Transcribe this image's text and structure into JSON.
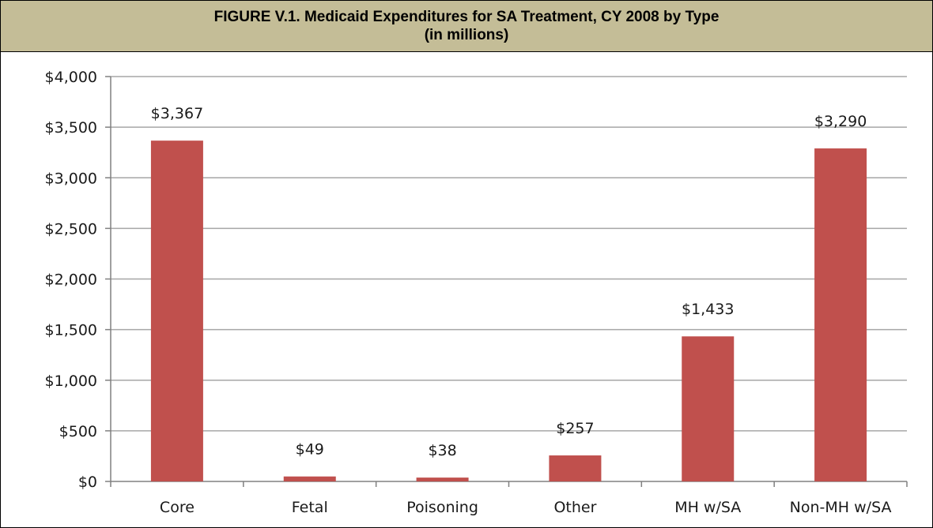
{
  "figure": {
    "title_line1": "FIGURE V.1. Medicaid Expenditures for SA Treatment, CY 2008 by Type",
    "title_line2": "(in millions)"
  },
  "colors": {
    "header_bg": "#c4bd97",
    "bar": "#c0504d",
    "grid": "#a6a6a6",
    "axis": "#808080"
  },
  "chart_data": {
    "type": "bar",
    "categories": [
      "Core",
      "Fetal",
      "Poisoning",
      "Other",
      "MH w/SA",
      "Non-MH w/SA"
    ],
    "values": [
      3367,
      49,
      38,
      257,
      1433,
      3290
    ],
    "data_labels": [
      "$3,367",
      "$49",
      "$38",
      "$257",
      "$1,433",
      "$3,290"
    ],
    "y_ticks": [
      0,
      500,
      1000,
      1500,
      2000,
      2500,
      3000,
      3500,
      4000
    ],
    "y_tick_labels": [
      "$0",
      "$500",
      "$1,000",
      "$1,500",
      "$2,000",
      "$2,500",
      "$3,000",
      "$3,500",
      "$4,000"
    ],
    "ylim": [
      0,
      4000
    ],
    "grid": true,
    "legend": "none"
  }
}
